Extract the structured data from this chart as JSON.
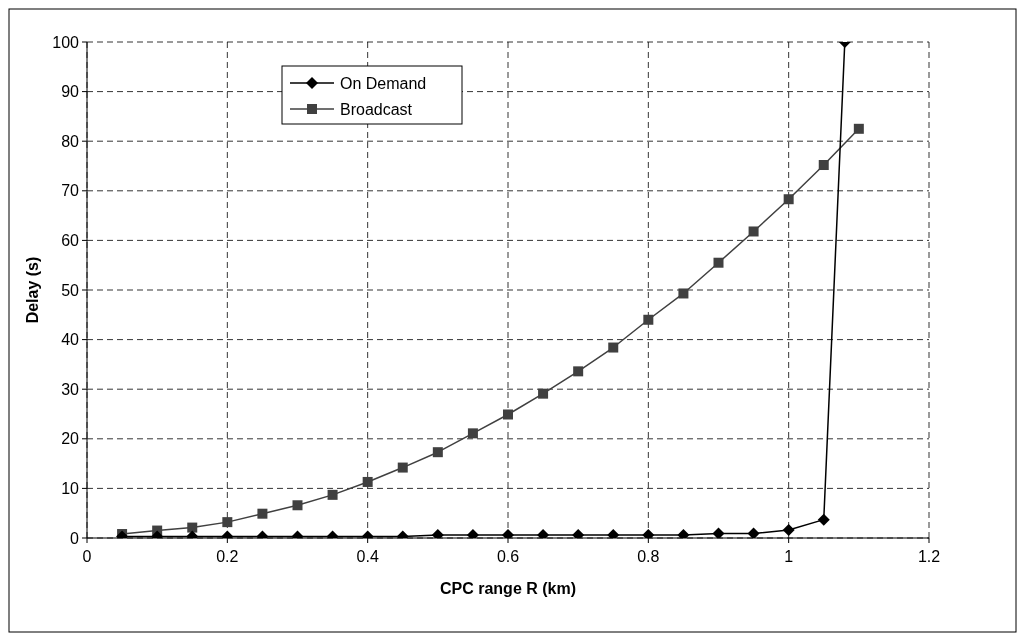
{
  "chart_data": {
    "type": "line",
    "xlabel": "CPC range R (km)",
    "ylabel": "Delay (s)",
    "x": [
      0.05,
      0.1,
      0.15,
      0.2,
      0.25,
      0.3,
      0.35,
      0.4,
      0.45,
      0.5,
      0.55,
      0.6,
      0.65,
      0.7,
      0.75,
      0.8,
      0.85,
      0.9,
      0.95,
      1.0,
      1.05,
      1.1
    ],
    "series": [
      {
        "name": "On Demand",
        "color": "#000000",
        "marker": "diamond",
        "x": [
          0.05,
          0.1,
          0.15,
          0.2,
          0.25,
          0.3,
          0.35,
          0.4,
          0.45,
          0.5,
          0.55,
          0.6,
          0.65,
          0.7,
          0.75,
          0.8,
          0.85,
          0.9,
          0.95,
          1.0,
          1.05,
          1.08
        ],
        "values": [
          0.3,
          0.3,
          0.3,
          0.3,
          0.3,
          0.3,
          0.3,
          0.3,
          0.3,
          0.6,
          0.6,
          0.6,
          0.6,
          0.6,
          0.6,
          0.6,
          0.6,
          0.9,
          0.9,
          1.6,
          3.7,
          100
        ]
      },
      {
        "name": "Broadcast",
        "color": "#404040",
        "marker": "square",
        "values": [
          0.8,
          1.5,
          2.1,
          3.2,
          4.9,
          6.6,
          8.7,
          11.3,
          14.2,
          17.3,
          21.1,
          24.9,
          29.1,
          33.6,
          38.4,
          44,
          49.3,
          55.5,
          61.8,
          68.3,
          75.2,
          82.5
        ]
      }
    ],
    "xlim": [
      0,
      1.2
    ],
    "xticks": [
      0,
      0.2,
      0.4,
      0.6,
      0.8,
      1,
      1.2
    ],
    "ylim": [
      0,
      100
    ],
    "yticks": [
      0,
      10,
      20,
      30,
      40,
      50,
      60,
      70,
      80,
      90,
      100
    ],
    "grid": true,
    "legend": "top left",
    "line_style": "solid"
  }
}
